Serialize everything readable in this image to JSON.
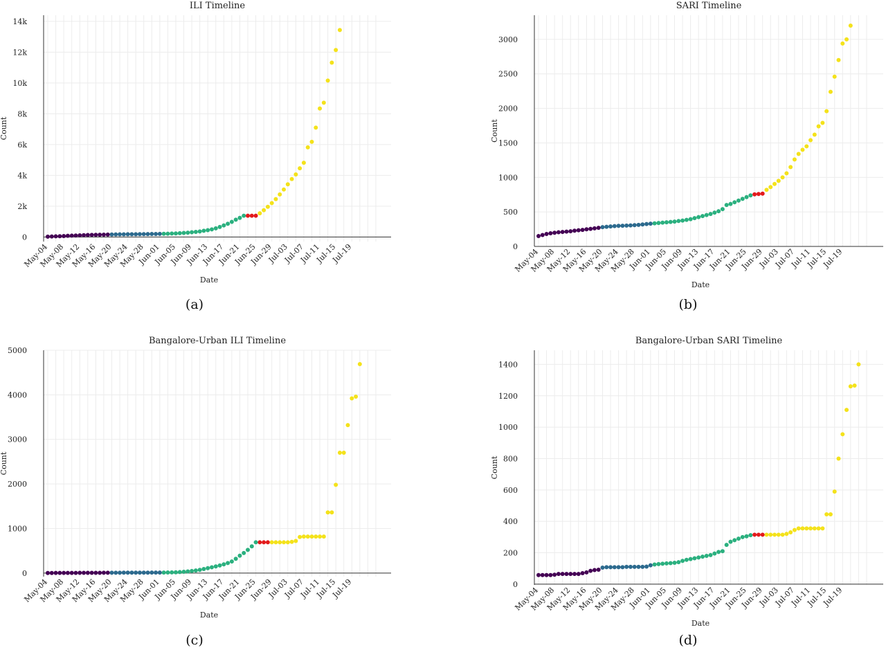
{
  "colors": {
    "pre_lockdown": "#440154",
    "lockdown": "#2c6a8e",
    "unlock_1": "#2bb07f",
    "lockdown_weekend": "#e31a1c",
    "unlock_2": "#f4e21b"
  },
  "chart_data": [
    {
      "type": "scatter",
      "id": "a",
      "title": "ILI Timeline",
      "panel_label": "(a)",
      "xlabel": "Date",
      "ylabel": "Count",
      "x_start": "2020-05-04",
      "x_tick_labels": [
        "May-04",
        "May-08",
        "May-12",
        "May-16",
        "May-20",
        "May-24",
        "May-28",
        "Jun-01",
        "Jun-05",
        "Jun-09",
        "Jun-13",
        "Jun-17",
        "Jun-21",
        "Jun-25",
        "Jun-29",
        "Jul-03",
        "Jul-07",
        "Jul-11",
        "Jul-15",
        "Jul-19"
      ],
      "y_ticks": [
        0,
        2000,
        4000,
        6000,
        8000,
        10000,
        12000,
        14000
      ],
      "y_tick_labels": [
        "0",
        "2k",
        "4k",
        "6k",
        "8k",
        "10k",
        "12k",
        "14k"
      ],
      "ylim": [
        -300,
        14400
      ],
      "segments": [
        {
          "color_key": "pre_lockdown",
          "values": [
            20,
            30,
            40,
            50,
            60,
            75,
            85,
            95,
            105,
            115,
            125,
            135,
            140,
            145,
            150,
            155
          ]
        },
        {
          "color_key": "lockdown",
          "values": [
            160,
            165,
            170,
            172,
            175,
            178,
            180,
            183,
            186,
            190,
            193,
            196,
            200
          ]
        },
        {
          "color_key": "unlock_1",
          "values": [
            205,
            210,
            220,
            230,
            245,
            260,
            280,
            305,
            330,
            360,
            400,
            440,
            490,
            560,
            650,
            750,
            860,
            980,
            1120,
            1240,
            1380
          ]
        },
        {
          "color_key": "lockdown_weekend",
          "values": [
            1380,
            1380,
            1380
          ]
        },
        {
          "color_key": "unlock_2",
          "values": [
            1540,
            1740,
            1960,
            2200,
            2460,
            2760,
            3080,
            3420,
            3760,
            4060,
            4460,
            4820,
            5820,
            6180,
            7100,
            8340,
            8720,
            10160,
            11320,
            12140,
            13440
          ]
        }
      ]
    },
    {
      "type": "scatter",
      "id": "b",
      "title": "SARI Timeline",
      "panel_label": "(b)",
      "xlabel": "Date",
      "ylabel": "Count",
      "x_start": "2020-05-04",
      "x_tick_labels": [
        "May-04",
        "May-08",
        "May-12",
        "May-16",
        "May-20",
        "May-24",
        "May-28",
        "Jun-01",
        "Jun-05",
        "Jun-09",
        "Jun-13",
        "Jun-17",
        "Jun-21",
        "Jun-25",
        "Jun-29",
        "Jul-03",
        "Jul-07",
        "Jul-11",
        "Jul-15",
        "Jul-19"
      ],
      "y_ticks": [
        0,
        500,
        1000,
        1500,
        2000,
        2500,
        3000
      ],
      "y_tick_labels": [
        "0",
        "500",
        "1000",
        "1500",
        "2000",
        "2500",
        "3000"
      ],
      "ylim": [
        0,
        3350
      ],
      "segments": [
        {
          "color_key": "pre_lockdown",
          "values": [
            150,
            165,
            180,
            190,
            198,
            205,
            210,
            215,
            220,
            228,
            235,
            240,
            248,
            255,
            262,
            270
          ]
        },
        {
          "color_key": "lockdown",
          "values": [
            280,
            285,
            290,
            295,
            298,
            300,
            302,
            305,
            308,
            312,
            318,
            325,
            330
          ]
        },
        {
          "color_key": "unlock_1",
          "values": [
            335,
            340,
            345,
            350,
            355,
            360,
            368,
            375,
            385,
            395,
            410,
            425,
            440,
            455,
            470,
            490,
            510,
            540,
            600,
            615,
            640,
            665,
            690,
            715,
            740
          ]
        },
        {
          "color_key": "lockdown_weekend",
          "values": [
            755,
            760,
            765
          ]
        },
        {
          "color_key": "unlock_2",
          "values": [
            820,
            860,
            905,
            950,
            1000,
            1060,
            1150,
            1260,
            1340,
            1400,
            1450,
            1540,
            1620,
            1740,
            1790,
            1960,
            2240,
            2460,
            2700,
            2940,
            3000,
            3200
          ]
        }
      ]
    },
    {
      "type": "scatter",
      "id": "c",
      "title": "Bangalore-Urban ILI Timeline",
      "panel_label": "(c)",
      "xlabel": "Date",
      "ylabel": "Count",
      "x_start": "2020-05-04",
      "x_tick_labels": [
        "May-04",
        "May-08",
        "May-12",
        "May-16",
        "May-20",
        "May-24",
        "May-28",
        "Jun-01",
        "Jun-05",
        "Jun-09",
        "Jun-13",
        "Jun-17",
        "Jun-21",
        "Jun-25",
        "Jun-29",
        "Jul-03",
        "Jul-07",
        "Jul-11",
        "Jul-15",
        "Jul-19"
      ],
      "y_ticks": [
        0,
        1000,
        2000,
        3000,
        4000,
        5000
      ],
      "y_tick_labels": [
        "0",
        "1000",
        "2000",
        "3000",
        "4000",
        "5000"
      ],
      "ylim": [
        -80,
        5000
      ],
      "segments": [
        {
          "color_key": "pre_lockdown",
          "values": [
            2,
            2,
            3,
            3,
            3,
            4,
            4,
            4,
            5,
            5,
            5,
            6,
            6,
            6,
            7,
            7
          ]
        },
        {
          "color_key": "lockdown",
          "values": [
            8,
            8,
            8,
            9,
            9,
            9,
            10,
            10,
            10,
            10,
            11,
            11,
            12
          ]
        },
        {
          "color_key": "unlock_1",
          "values": [
            12,
            13,
            15,
            18,
            22,
            28,
            36,
            46,
            58,
            72,
            90,
            110,
            130,
            150,
            170,
            195,
            225,
            260,
            320,
            390,
            450,
            520,
            600,
            690
          ]
        },
        {
          "color_key": "lockdown_weekend",
          "values": [
            690,
            690,
            690
          ]
        },
        {
          "color_key": "unlock_2",
          "values": [
            690,
            690,
            690,
            690,
            690,
            700,
            720,
            810,
            820,
            820,
            820,
            820,
            820,
            820,
            1360,
            1360,
            1980,
            2700,
            2700,
            3320,
            3920,
            3960,
            4690
          ]
        }
      ]
    },
    {
      "type": "scatter",
      "id": "d",
      "title": "Bangalore-Urban SARI Timeline",
      "panel_label": "(d)",
      "xlabel": "Date",
      "ylabel": "Count",
      "x_start": "2020-05-04",
      "x_tick_labels": [
        "May-04",
        "May-08",
        "May-12",
        "May-16",
        "May-20",
        "May-24",
        "May-28",
        "Jun-01",
        "Jun-05",
        "Jun-09",
        "Jun-13",
        "Jun-17",
        "Jun-21",
        "Jun-25",
        "Jun-29",
        "Jul-03",
        "Jul-07",
        "Jul-11",
        "Jul-15",
        "Jul-19"
      ],
      "y_ticks": [
        0,
        200,
        400,
        600,
        800,
        1000,
        1200,
        1400
      ],
      "y_tick_labels": [
        "0",
        "200",
        "400",
        "600",
        "800",
        "1000",
        "1200",
        "1400"
      ],
      "ylim": [
        -5,
        1490
      ],
      "segments": [
        {
          "color_key": "pre_lockdown",
          "values": [
            58,
            58,
            58,
            58,
            60,
            65,
            65,
            65,
            65,
            65,
            65,
            70,
            75,
            85,
            90,
            92
          ]
        },
        {
          "color_key": "lockdown",
          "values": [
            105,
            108,
            108,
            108,
            108,
            108,
            110,
            110,
            110,
            110,
            110,
            112,
            120
          ]
        },
        {
          "color_key": "unlock_1",
          "values": [
            125,
            128,
            130,
            132,
            134,
            136,
            140,
            148,
            155,
            160,
            165,
            170,
            175,
            180,
            185,
            195,
            205,
            210,
            250,
            270,
            280,
            290,
            300,
            305,
            312
          ]
        },
        {
          "color_key": "lockdown_weekend",
          "values": [
            315,
            315,
            315
          ]
        },
        {
          "color_key": "unlock_2",
          "values": [
            315,
            315,
            315,
            315,
            315,
            320,
            330,
            345,
            355,
            355,
            355,
            355,
            355,
            355,
            355,
            445,
            445,
            590,
            800,
            955,
            1110,
            1260,
            1265,
            1400
          ]
        }
      ]
    }
  ]
}
